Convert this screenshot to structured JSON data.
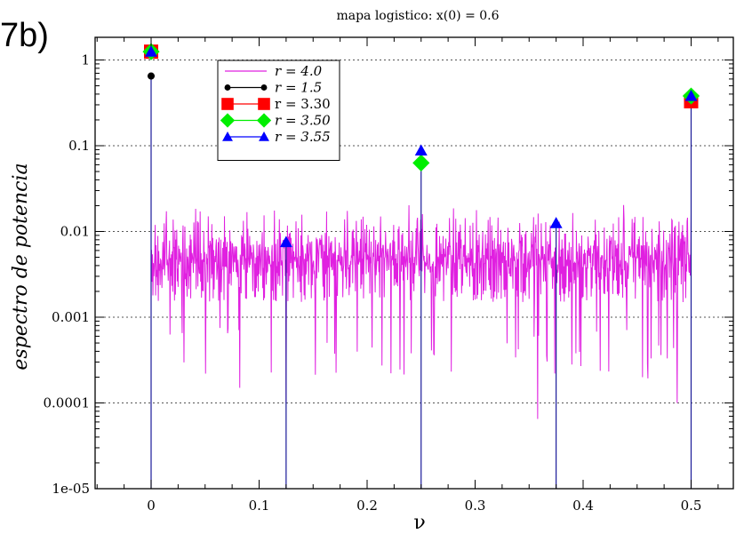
{
  "panel_label": "7b)",
  "chart_data": {
    "type": "line",
    "title": "mapa logistico:  x(0) = 0.6",
    "xlabel": "ν",
    "ylabel": "espectro de potencia",
    "xlim": [
      -0.05,
      0.55
    ],
    "ylim": [
      1e-05,
      2.5
    ],
    "yscale": "log",
    "grid": true,
    "legend_position": "top-left",
    "x_ticks": [
      0,
      0.1,
      0.2,
      0.3,
      0.4,
      0.5
    ],
    "x_tick_labels": [
      "0",
      "0.1",
      "0.2",
      "0.3",
      "0.4",
      "0.5"
    ],
    "y_ticks": [
      1e-05,
      0.0001,
      0.001,
      0.01,
      0.1,
      1
    ],
    "y_tick_labels": [
      "1e-05",
      "0.0001",
      "0.001",
      "0.01",
      "0.1",
      "1"
    ],
    "noise_series": {
      "name": "r = 4.0",
      "color": "#e020e0",
      "x_range": [
        0,
        0.5
      ],
      "typical_range": [
        0.0015,
        0.013
      ],
      "notable_dips": [
        {
          "x": 0.125,
          "y": 0.0001
        },
        {
          "x": 0.358,
          "y": 6.5e-05
        },
        {
          "x": 0.082,
          "y": 0.00015
        },
        {
          "x": 0.487,
          "y": 0.0001
        },
        {
          "x": 0.455,
          "y": 0.0002
        }
      ]
    },
    "series": [
      {
        "name": "r = 1.5",
        "color": "#000000",
        "marker": "circle",
        "stem_color": "#1a1a99",
        "points": [
          {
            "x": 0,
            "y": 0.65
          }
        ]
      },
      {
        "name": "r = 3.30",
        "color": "#ff0000",
        "marker": "square",
        "stem_color": "#1a1a99",
        "points": [
          {
            "x": 0,
            "y": 1.25
          },
          {
            "x": 0.5,
            "y": 0.33
          }
        ]
      },
      {
        "name": "r = 3.50",
        "color": "#00ee00",
        "marker": "diamond",
        "stem_color": "#1a1a99",
        "points": [
          {
            "x": 0,
            "y": 1.25
          },
          {
            "x": 0.25,
            "y": 0.063
          },
          {
            "x": 0.5,
            "y": 0.38
          }
        ]
      },
      {
        "name": "r = 3.55",
        "color": "#0000ff",
        "marker": "triangle",
        "stem_color": "#1a1a99",
        "points": [
          {
            "x": 0,
            "y": 1.25
          },
          {
            "x": 0.125,
            "y": 0.0075
          },
          {
            "x": 0.25,
            "y": 0.088
          },
          {
            "x": 0.375,
            "y": 0.0125
          },
          {
            "x": 0.5,
            "y": 0.38
          }
        ]
      }
    ],
    "legend": [
      {
        "label": "r = 4.0",
        "color": "#e020e0",
        "marker": "none",
        "italic": true
      },
      {
        "label": "r = 1.5",
        "color": "#000000",
        "marker": "circle",
        "italic": true
      },
      {
        "label": "r = 3.30",
        "color": "#ff0000",
        "marker": "square",
        "italic": false
      },
      {
        "label": "r = 3.50",
        "color": "#00ee00",
        "marker": "diamond",
        "italic": true
      },
      {
        "label": "r = 3.55",
        "color": "#0000ff",
        "marker": "triangle",
        "italic": true
      }
    ]
  }
}
